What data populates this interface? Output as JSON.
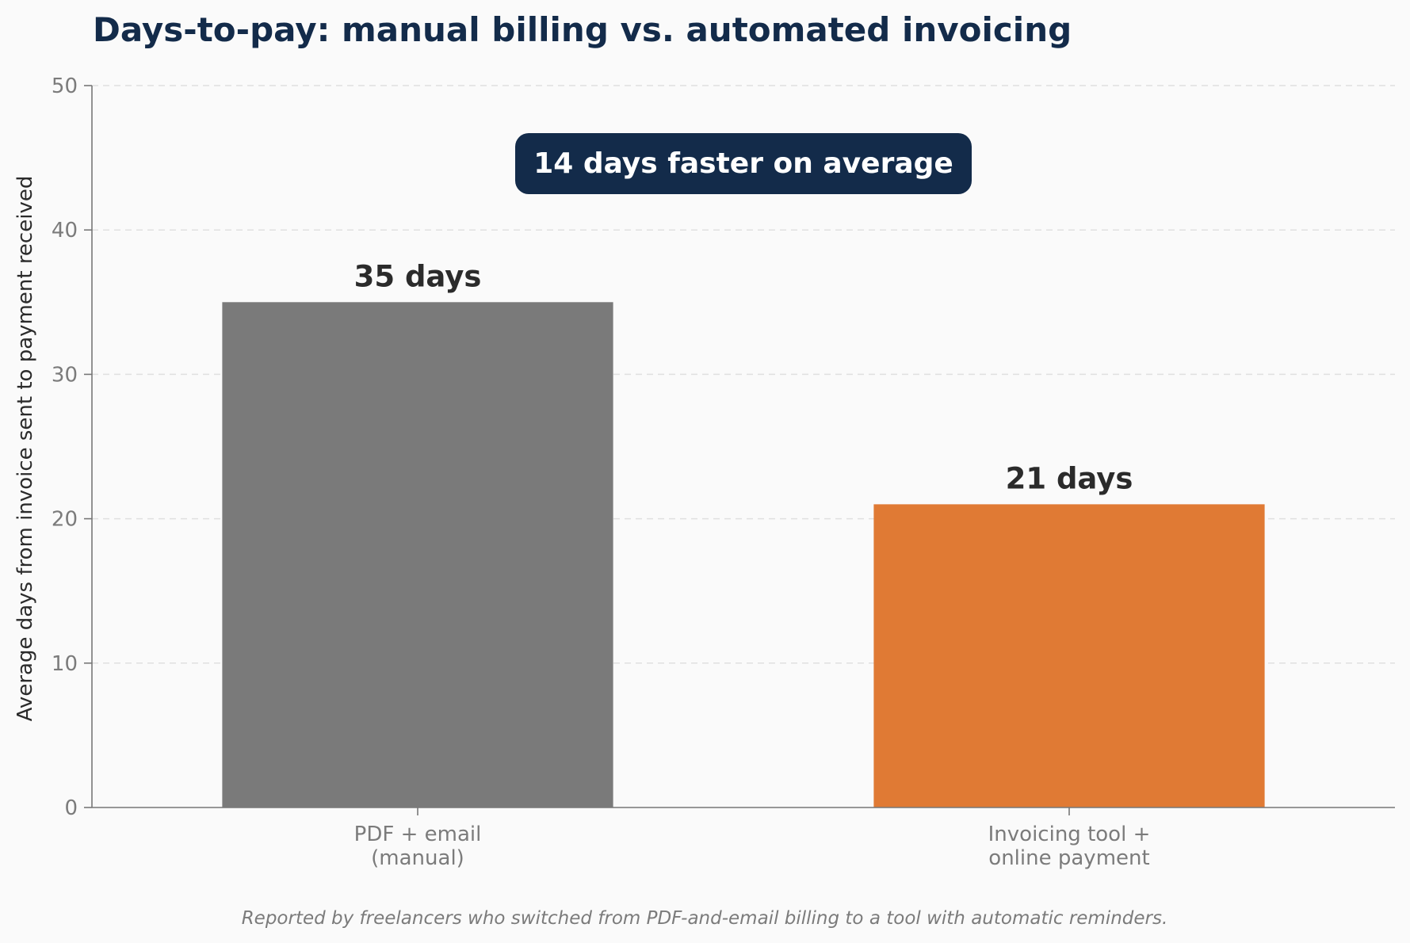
{
  "chart_data": {
    "type": "bar",
    "title": "Days-to-pay: manual billing vs. automated invoicing",
    "ylabel": "Average days from invoice sent to payment received",
    "xlabel": "",
    "categories": [
      [
        "PDF + email",
        "(manual)"
      ],
      [
        "Invoicing tool +",
        "online payment"
      ]
    ],
    "values": [
      35,
      21
    ],
    "value_labels": [
      "35 days",
      "21 days"
    ],
    "colors": [
      "#7a7a7a",
      "#e07a34"
    ],
    "ylim": [
      0,
      50
    ],
    "yticks": [
      0,
      10,
      20,
      30,
      40,
      50
    ],
    "grid": true,
    "annotation": "14 days faster on average",
    "annotation_color": "#132b4a",
    "footnote": "Reported by freelancers who switched from PDF-and-email billing to a tool with automatic reminders."
  }
}
